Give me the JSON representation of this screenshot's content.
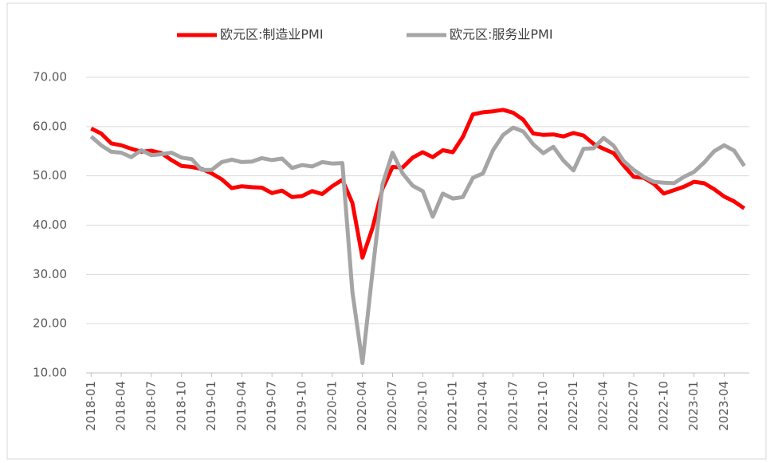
{
  "chart_data": {
    "type": "line",
    "categories": [
      "2018-01",
      null,
      null,
      "2018-04",
      null,
      null,
      "2018-07",
      null,
      null,
      "2018-10",
      null,
      null,
      "2019-01",
      null,
      null,
      "2019-04",
      null,
      null,
      "2019-07",
      null,
      null,
      "2019-10",
      null,
      null,
      "2020-01",
      null,
      null,
      "2020-04",
      null,
      null,
      "2020-07",
      null,
      null,
      "2020-10",
      null,
      null,
      "2021-01",
      null,
      null,
      "2021-04",
      null,
      null,
      "2021-07",
      null,
      null,
      "2021-10",
      null,
      null,
      "2022-01",
      null,
      null,
      "2022-04",
      null,
      null,
      "2022-07",
      null,
      null,
      "2022-10",
      null,
      null,
      "2023-01",
      null,
      null,
      "2023-04",
      null,
      null
    ],
    "series": [
      {
        "name": "欧元区:制造业PMI",
        "color": "#ff0000",
        "values": [
          59.6,
          58.6,
          56.6,
          56.2,
          55.5,
          54.9,
          55.1,
          54.6,
          53.2,
          52.0,
          51.8,
          51.4,
          50.5,
          49.3,
          47.5,
          47.9,
          47.7,
          47.6,
          46.5,
          47.0,
          45.7,
          45.9,
          46.9,
          46.3,
          47.9,
          49.2,
          44.5,
          33.4,
          39.4,
          47.4,
          51.8,
          51.7,
          53.7,
          54.8,
          53.8,
          55.2,
          54.8,
          57.9,
          62.5,
          62.9,
          63.1,
          63.4,
          62.8,
          61.4,
          58.6,
          58.3,
          58.4,
          58.0,
          58.7,
          58.2,
          56.5,
          55.5,
          54.6,
          52.1,
          49.8,
          49.6,
          48.4,
          46.4,
          47.1,
          47.8,
          48.8,
          48.5,
          47.3,
          45.8,
          44.8,
          43.4
        ]
      },
      {
        "name": "欧元区:服务业PMI",
        "color": "#a5a5a5",
        "values": [
          58.0,
          56.2,
          54.9,
          54.7,
          53.8,
          55.2,
          54.2,
          54.4,
          54.7,
          53.7,
          53.4,
          51.2,
          51.2,
          52.8,
          53.3,
          52.8,
          52.9,
          53.6,
          53.2,
          53.5,
          51.6,
          52.2,
          51.9,
          52.8,
          52.5,
          52.6,
          26.4,
          12.0,
          30.5,
          48.3,
          54.7,
          50.5,
          48.0,
          46.9,
          41.7,
          46.4,
          45.4,
          45.7,
          49.6,
          50.5,
          55.2,
          58.3,
          59.8,
          59.0,
          56.4,
          54.6,
          55.9,
          53.1,
          51.1,
          55.5,
          55.6,
          57.7,
          56.1,
          53.0,
          51.2,
          49.8,
          48.8,
          48.6,
          48.5,
          49.8,
          50.8,
          52.7,
          55.0,
          56.2,
          55.1,
          52.0
        ]
      }
    ],
    "ylim": [
      10,
      70
    ],
    "yticks": [
      {
        "value": 10,
        "label": "10.00"
      },
      {
        "value": 20,
        "label": "20.00"
      },
      {
        "value": 30,
        "label": "30.00"
      },
      {
        "value": 40,
        "label": "40.00"
      },
      {
        "value": 50,
        "label": "50.00"
      },
      {
        "value": 60,
        "label": "60.00"
      },
      {
        "value": 70,
        "label": "70.00"
      }
    ],
    "grid": true,
    "legend": "top"
  }
}
